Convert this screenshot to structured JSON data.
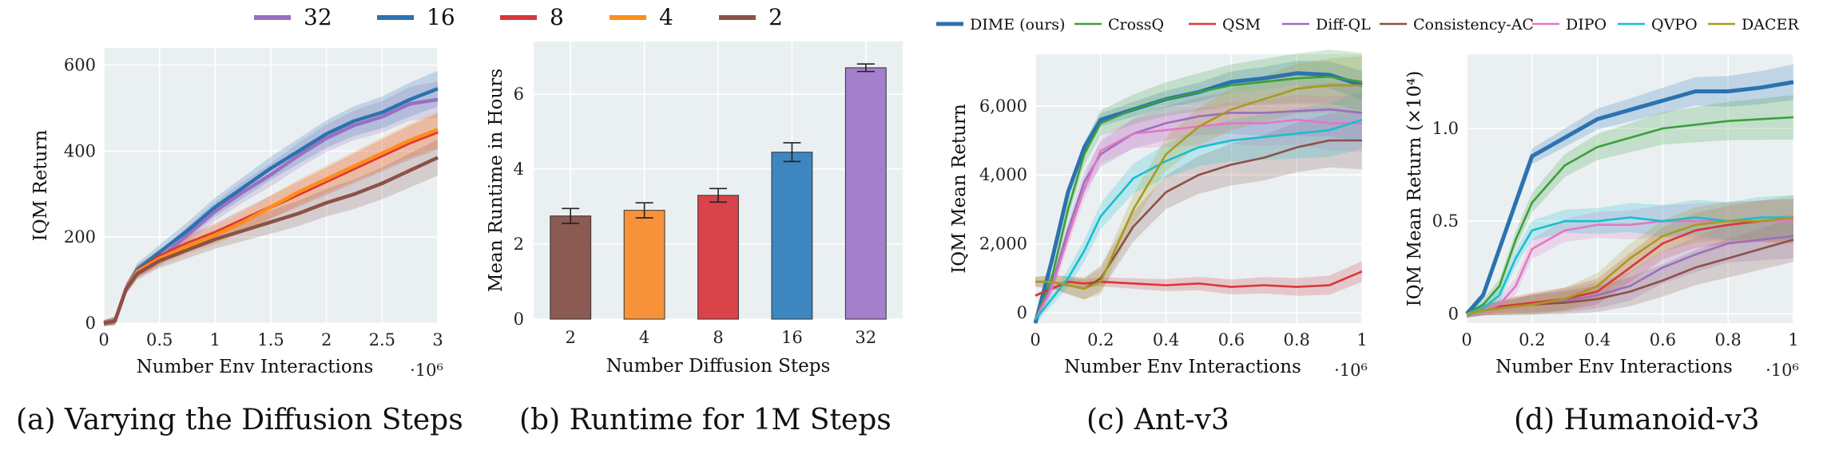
{
  "chart_data": [
    {
      "id": "a",
      "type": "line",
      "caption": "(a) Varying the Diffusion Steps",
      "xlabel": "Number Env Interactions",
      "x_multiplier": "·10⁶",
      "ylabel": "IQM Return",
      "xlim": [
        0,
        3
      ],
      "ylim": [
        0,
        640
      ],
      "xticks": [
        "0",
        "0.5",
        "1",
        "1.5",
        "2",
        "2.5",
        "3"
      ],
      "yticks": [
        "0",
        "200",
        "400",
        "600"
      ],
      "legend_position": "top",
      "series": [
        {
          "name": "32",
          "color": "#9a6fc0",
          "x": [
            0,
            0.1,
            0.2,
            0.3,
            0.5,
            0.75,
            1,
            1.25,
            1.5,
            1.75,
            2,
            2.25,
            2.5,
            2.75,
            3
          ],
          "y": [
            0,
            5,
            80,
            120,
            150,
            205,
            260,
            305,
            345,
            390,
            430,
            460,
            480,
            510,
            520
          ]
        },
        {
          "name": "16",
          "color": "#2b72b0",
          "x": [
            0,
            0.1,
            0.2,
            0.3,
            0.5,
            0.75,
            1,
            1.25,
            1.5,
            1.75,
            2,
            2.25,
            2.5,
            2.75,
            3
          ],
          "y": [
            0,
            5,
            80,
            125,
            165,
            215,
            270,
            315,
            360,
            400,
            440,
            470,
            490,
            520,
            545
          ]
        },
        {
          "name": "8",
          "color": "#d8373b",
          "x": [
            0,
            0.1,
            0.2,
            0.3,
            0.5,
            0.75,
            1,
            1.25,
            1.5,
            1.75,
            2,
            2.25,
            2.5,
            2.75,
            3
          ],
          "y": [
            0,
            5,
            80,
            120,
            155,
            185,
            210,
            240,
            270,
            300,
            330,
            360,
            390,
            420,
            445
          ]
        },
        {
          "name": "4",
          "color": "#ff8c1a",
          "x": [
            0,
            0.1,
            0.2,
            0.3,
            0.5,
            0.75,
            1,
            1.25,
            1.5,
            1.75,
            2,
            2.25,
            2.5,
            2.75,
            3
          ],
          "y": [
            0,
            5,
            80,
            120,
            150,
            180,
            205,
            235,
            270,
            305,
            335,
            365,
            395,
            425,
            450
          ]
        },
        {
          "name": "2",
          "color": "#8b5247",
          "x": [
            0,
            0.1,
            0.2,
            0.3,
            0.5,
            0.75,
            1,
            1.25,
            1.5,
            1.75,
            2,
            2.25,
            2.5,
            2.75,
            3
          ],
          "y": [
            0,
            5,
            80,
            115,
            145,
            170,
            195,
            215,
            235,
            255,
            280,
            300,
            325,
            355,
            385
          ]
        }
      ]
    },
    {
      "id": "b",
      "type": "bar",
      "caption": "(b) Runtime for 1M Steps",
      "xlabel": "Number Diffusion Steps",
      "ylabel": "Mean Runtime in Hours",
      "ylim": [
        0,
        7.4
      ],
      "yticks": [
        "0",
        "2",
        "4",
        "6"
      ],
      "categories": [
        "2",
        "4",
        "8",
        "16",
        "32"
      ],
      "values": [
        2.75,
        2.9,
        3.3,
        4.45,
        6.7
      ],
      "errors": [
        0.2,
        0.2,
        0.18,
        0.25,
        0.1
      ],
      "colors": [
        "#8b5a52",
        "#f7923a",
        "#d9434a",
        "#3e86c0",
        "#a47fcb"
      ]
    },
    {
      "id": "c",
      "type": "line",
      "caption": "(c) Ant-v3",
      "xlabel": "Number Env Interactions",
      "x_multiplier": "·10⁶",
      "ylabel": "IQM Mean Return",
      "xlim": [
        0,
        1
      ],
      "ylim": [
        -300,
        7500
      ],
      "xticks": [
        "0",
        "0.2",
        "0.4",
        "0.6",
        "0.8",
        "1"
      ],
      "yticks": [
        "0",
        "2,000",
        "4,000",
        "6,000"
      ],
      "series": [
        {
          "name": "DIME (ours)",
          "color": "#2b72b0",
          "x": [
            0,
            0.05,
            0.1,
            0.15,
            0.2,
            0.3,
            0.4,
            0.5,
            0.6,
            0.7,
            0.8,
            0.9,
            1
          ],
          "y": [
            -300,
            1500,
            3500,
            4800,
            5600,
            5900,
            6200,
            6400,
            6700,
            6800,
            6950,
            6900,
            6600
          ]
        },
        {
          "name": "CrossQ",
          "color": "#3aa03a",
          "x": [
            0,
            0.05,
            0.1,
            0.15,
            0.2,
            0.3,
            0.4,
            0.5,
            0.6,
            0.7,
            0.8,
            0.9,
            1
          ],
          "y": [
            -200,
            1000,
            3000,
            4600,
            5500,
            5900,
            6200,
            6400,
            6600,
            6700,
            6800,
            6850,
            6700
          ]
        },
        {
          "name": "QSM",
          "color": "#d8373b",
          "x": [
            0,
            0.05,
            0.1,
            0.15,
            0.2,
            0.3,
            0.4,
            0.5,
            0.6,
            0.7,
            0.8,
            0.9,
            1
          ],
          "y": [
            500,
            700,
            900,
            850,
            900,
            850,
            800,
            850,
            750,
            800,
            750,
            800,
            1200
          ]
        },
        {
          "name": "Diff-QL",
          "color": "#9a6fc0",
          "x": [
            0,
            0.05,
            0.1,
            0.15,
            0.2,
            0.3,
            0.4,
            0.5,
            0.6,
            0.7,
            0.8,
            0.9,
            1
          ],
          "y": [
            -200,
            800,
            2400,
            3800,
            4600,
            5200,
            5500,
            5700,
            5800,
            5800,
            5850,
            5900,
            5800
          ]
        },
        {
          "name": "Consistency-AC",
          "color": "#8b5247",
          "x": [
            0,
            0.05,
            0.1,
            0.15,
            0.2,
            0.3,
            0.4,
            0.5,
            0.6,
            0.7,
            0.8,
            0.9,
            1
          ],
          "y": [
            900,
            900,
            800,
            700,
            1000,
            2500,
            3500,
            4000,
            4300,
            4500,
            4800,
            5000,
            5000
          ]
        },
        {
          "name": "DIPO",
          "color": "#e377c2",
          "x": [
            0,
            0.05,
            0.1,
            0.15,
            0.2,
            0.3,
            0.4,
            0.5,
            0.6,
            0.7,
            0.8,
            0.9,
            1
          ],
          "y": [
            -200,
            700,
            2200,
            3600,
            4700,
            5200,
            5300,
            5400,
            5500,
            5500,
            5600,
            5500,
            5500
          ]
        },
        {
          "name": "QVPO",
          "color": "#17becf",
          "x": [
            0,
            0.05,
            0.1,
            0.15,
            0.2,
            0.3,
            0.4,
            0.5,
            0.6,
            0.7,
            0.8,
            0.9,
            1
          ],
          "y": [
            -200,
            400,
            1000,
            1800,
            2800,
            3900,
            4400,
            4800,
            5000,
            5100,
            5200,
            5300,
            5600
          ]
        },
        {
          "name": "DACER",
          "color": "#a89a1e",
          "x": [
            0,
            0.05,
            0.1,
            0.15,
            0.2,
            0.3,
            0.4,
            0.5,
            0.6,
            0.7,
            0.8,
            0.9,
            1
          ],
          "y": [
            900,
            900,
            800,
            700,
            900,
            3000,
            4600,
            5400,
            5900,
            6200,
            6500,
            6600,
            6600
          ]
        }
      ]
    },
    {
      "id": "d",
      "type": "line",
      "caption": "(d) Humanoid-v3",
      "xlabel": "Number Env Interactions",
      "x_multiplier": "·10⁶",
      "ylabel": "IQM Mean Return (×10⁴)",
      "xlim": [
        0,
        1
      ],
      "ylim": [
        -0.05,
        1.4
      ],
      "xticks": [
        "0",
        "0.2",
        "0.4",
        "0.6",
        "0.8",
        "1"
      ],
      "yticks": [
        "0",
        "0.5",
        "1.0"
      ],
      "series": [
        {
          "name": "DIME (ours)",
          "color": "#2b72b0",
          "x": [
            0,
            0.05,
            0.1,
            0.15,
            0.2,
            0.3,
            0.4,
            0.5,
            0.6,
            0.7,
            0.8,
            0.9,
            1
          ],
          "y": [
            0,
            0.1,
            0.35,
            0.6,
            0.85,
            0.95,
            1.05,
            1.1,
            1.15,
            1.2,
            1.2,
            1.22,
            1.25
          ]
        },
        {
          "name": "CrossQ",
          "color": "#3aa03a",
          "x": [
            0,
            0.05,
            0.1,
            0.15,
            0.2,
            0.3,
            0.4,
            0.5,
            0.6,
            0.7,
            0.8,
            0.9,
            1
          ],
          "y": [
            0,
            0.05,
            0.15,
            0.4,
            0.6,
            0.8,
            0.9,
            0.95,
            1.0,
            1.02,
            1.04,
            1.05,
            1.06
          ]
        },
        {
          "name": "QSM",
          "color": "#d8373b",
          "x": [
            0,
            0.05,
            0.1,
            0.15,
            0.2,
            0.3,
            0.4,
            0.5,
            0.6,
            0.7,
            0.8,
            0.9,
            1
          ],
          "y": [
            0,
            0.02,
            0.04,
            0.05,
            0.06,
            0.08,
            0.12,
            0.25,
            0.38,
            0.45,
            0.48,
            0.5,
            0.5
          ]
        },
        {
          "name": "Diff-QL",
          "color": "#9a6fc0",
          "x": [
            0,
            0.05,
            0.1,
            0.15,
            0.2,
            0.3,
            0.4,
            0.5,
            0.6,
            0.7,
            0.8,
            0.9,
            1
          ],
          "y": [
            0,
            0.02,
            0.03,
            0.04,
            0.05,
            0.07,
            0.1,
            0.15,
            0.25,
            0.32,
            0.38,
            0.4,
            0.42
          ]
        },
        {
          "name": "Consistency-AC",
          "color": "#8b5247",
          "x": [
            0,
            0.05,
            0.1,
            0.15,
            0.2,
            0.3,
            0.4,
            0.5,
            0.6,
            0.7,
            0.8,
            0.9,
            1
          ],
          "y": [
            0,
            0.02,
            0.03,
            0.04,
            0.05,
            0.06,
            0.08,
            0.12,
            0.18,
            0.25,
            0.3,
            0.35,
            0.4
          ]
        },
        {
          "name": "DIPO",
          "color": "#e377c2",
          "x": [
            0,
            0.05,
            0.1,
            0.15,
            0.2,
            0.3,
            0.4,
            0.5,
            0.6,
            0.7,
            0.8,
            0.9,
            1
          ],
          "y": [
            0,
            0.02,
            0.05,
            0.15,
            0.35,
            0.45,
            0.48,
            0.48,
            0.5,
            0.5,
            0.5,
            0.5,
            0.5
          ]
        },
        {
          "name": "QVPO",
          "color": "#17becf",
          "x": [
            0,
            0.05,
            0.1,
            0.15,
            0.2,
            0.3,
            0.4,
            0.5,
            0.6,
            0.7,
            0.8,
            0.9,
            1
          ],
          "y": [
            0,
            0.03,
            0.1,
            0.3,
            0.45,
            0.5,
            0.5,
            0.52,
            0.5,
            0.52,
            0.5,
            0.52,
            0.52
          ]
        },
        {
          "name": "DACER",
          "color": "#a89a1e",
          "x": [
            0,
            0.05,
            0.1,
            0.15,
            0.2,
            0.3,
            0.4,
            0.5,
            0.6,
            0.7,
            0.8,
            0.9,
            1
          ],
          "y": [
            0,
            0.02,
            0.03,
            0.04,
            0.05,
            0.08,
            0.15,
            0.3,
            0.42,
            0.48,
            0.5,
            0.5,
            0.52
          ]
        }
      ]
    }
  ]
}
